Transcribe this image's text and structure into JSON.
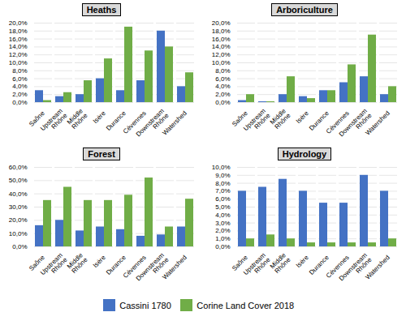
{
  "chart_data": [
    {
      "type": "bar",
      "title": "Heaths",
      "categories": [
        "Saône",
        "Upstream\nRhône",
        "Middle\nRhône",
        "Isère",
        "Durance",
        "Cévennes",
        "Downstream\nRhône",
        "Watershed"
      ],
      "series": [
        {
          "name": "Cassini 1780",
          "color": "#4472C4",
          "values": [
            3.0,
            1.5,
            2.0,
            6.0,
            3.0,
            5.5,
            18.0,
            4.0
          ]
        },
        {
          "name": "Corine Land Cover 2018",
          "color": "#70AD47",
          "values": [
            0.5,
            2.5,
            5.5,
            11.0,
            19.0,
            13.0,
            14.0,
            7.5
          ]
        }
      ],
      "ylim": [
        0,
        20
      ],
      "yticks": [
        {
          "value": 0,
          "label": "0,0%"
        },
        {
          "value": 2,
          "label": "2,0%"
        },
        {
          "value": 4,
          "label": "4,0%"
        },
        {
          "value": 6,
          "label": "6,0%"
        },
        {
          "value": 8,
          "label": "8,0%"
        },
        {
          "value": 10,
          "label": "10,0%"
        },
        {
          "value": 12,
          "label": "12,0%"
        },
        {
          "value": 14,
          "label": "14,0%"
        },
        {
          "value": 16,
          "label": "16,0%"
        },
        {
          "value": 18,
          "label": "18,0%"
        },
        {
          "value": 20,
          "label": "20,0%"
        }
      ],
      "grid": true,
      "legend": "bottom"
    },
    {
      "type": "bar",
      "title": "Arboriculture",
      "categories": [
        "Saône",
        "Upstream\nRhône",
        "Middle\nRhône",
        "Isère",
        "Durance",
        "Cévennes",
        "Downstream\nRhône",
        "Watershed"
      ],
      "series": [
        {
          "name": "Cassini 1780",
          "color": "#4472C4",
          "values": [
            0.5,
            0.2,
            2.0,
            1.5,
            3.0,
            5.0,
            6.5,
            2.0
          ]
        },
        {
          "name": "Corine Land Cover 2018",
          "color": "#70AD47",
          "values": [
            2.0,
            0.2,
            6.5,
            1.0,
            3.0,
            9.5,
            17.0,
            4.0
          ]
        }
      ],
      "ylim": [
        0,
        20
      ],
      "yticks": [
        {
          "value": 0,
          "label": "0,0%"
        },
        {
          "value": 2,
          "label": "2,0%"
        },
        {
          "value": 4,
          "label": "4,0%"
        },
        {
          "value": 6,
          "label": "6,0%"
        },
        {
          "value": 8,
          "label": "8,0%"
        },
        {
          "value": 10,
          "label": "10,0%"
        },
        {
          "value": 12,
          "label": "12,0%"
        },
        {
          "value": 14,
          "label": "14,0%"
        },
        {
          "value": 16,
          "label": "16,0%"
        },
        {
          "value": 18,
          "label": "18,0%"
        },
        {
          "value": 20,
          "label": "20,0%"
        }
      ],
      "grid": true,
      "legend": "bottom"
    },
    {
      "type": "bar",
      "title": "Forest",
      "categories": [
        "Saône",
        "Upstream\nRhône",
        "Middle\nRhône",
        "Isère",
        "Durance",
        "Cévennes",
        "Downstream\nRhône",
        "Watershed"
      ],
      "series": [
        {
          "name": "Cassini 1780",
          "color": "#4472C4",
          "values": [
            16.0,
            20.0,
            12.0,
            15.0,
            13.0,
            8.0,
            9.0,
            15.0
          ]
        },
        {
          "name": "Corine Land Cover 2018",
          "color": "#70AD47",
          "values": [
            35.0,
            45.0,
            35.0,
            35.0,
            39.0,
            52.0,
            15.0,
            36.0
          ]
        }
      ],
      "ylim": [
        0,
        60
      ],
      "yticks": [
        {
          "value": 0,
          "label": "0,0%"
        },
        {
          "value": 10,
          "label": "10,0%"
        },
        {
          "value": 20,
          "label": "20,0%"
        },
        {
          "value": 30,
          "label": "30,0%"
        },
        {
          "value": 40,
          "label": "40,0%"
        },
        {
          "value": 50,
          "label": "50,0%"
        },
        {
          "value": 60,
          "label": "60,0%"
        }
      ],
      "grid": true,
      "legend": "bottom"
    },
    {
      "type": "bar",
      "title": "Hydrology",
      "categories": [
        "Saône",
        "Upstream\nRhône",
        "Middle\nRhône",
        "Isère",
        "Durance",
        "Cévennes",
        "Downstream\nRhône",
        "Watershed"
      ],
      "series": [
        {
          "name": "Cassini 1780",
          "color": "#4472C4",
          "values": [
            7.0,
            7.5,
            8.5,
            7.0,
            5.5,
            5.5,
            9.0,
            7.0
          ]
        },
        {
          "name": "Corine Land Cover 2018",
          "color": "#70AD47",
          "values": [
            1.0,
            1.5,
            1.0,
            0.5,
            0.5,
            0.5,
            0.5,
            1.0
          ]
        }
      ],
      "ylim": [
        0,
        10
      ],
      "yticks": [
        {
          "value": 0,
          "label": "0,0%"
        },
        {
          "value": 1,
          "label": "1,0%"
        },
        {
          "value": 2,
          "label": "2,0%"
        },
        {
          "value": 3,
          "label": "3,0%"
        },
        {
          "value": 4,
          "label": "4,0%"
        },
        {
          "value": 5,
          "label": "5,0%"
        },
        {
          "value": 6,
          "label": "6,0%"
        },
        {
          "value": 7,
          "label": "7,0%"
        },
        {
          "value": 8,
          "label": "8,0%"
        },
        {
          "value": 9,
          "label": "9,0%"
        },
        {
          "value": 10,
          "label": "10,0%"
        }
      ],
      "grid": true,
      "legend": "bottom"
    }
  ]
}
